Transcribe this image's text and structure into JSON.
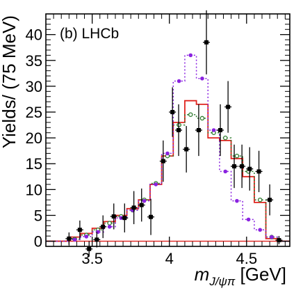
{
  "chart_data": {
    "type": "line",
    "panel_label": "(b)  LHCb",
    "ylabel": "Yields/ (75 MeV)",
    "xlabel": {
      "main": "m",
      "subscript": "J/ψπ",
      "unit": " [GeV]"
    },
    "xlim": [
      3.2,
      4.78
    ],
    "ylim": [
      -1,
      44
    ],
    "x_ticks": [
      3.5,
      4,
      4.5
    ],
    "x_tick_labels": [
      "3.5",
      "4",
      "4.5"
    ],
    "y_ticks": [
      0,
      5,
      10,
      15,
      20,
      25,
      30,
      35,
      40
    ],
    "y_tick_labels": [
      "0",
      "5",
      "10",
      "15",
      "20",
      "25",
      "30",
      "35",
      "40"
    ],
    "grid": false,
    "bin_width": 0.075,
    "data_points": {
      "color": "#000000",
      "points": [
        {
          "x": 3.35,
          "y": 0.5,
          "err": 1.2
        },
        {
          "x": 3.42,
          "y": 2.2,
          "err": 1.8
        },
        {
          "x": 3.48,
          "y": -1.5,
          "err": 1.5
        },
        {
          "x": 3.53,
          "y": 0.3,
          "err": 1.5
        },
        {
          "x": 3.57,
          "y": 2.8,
          "err": 2.2
        },
        {
          "x": 3.64,
          "y": 4.8,
          "err": 2.5
        },
        {
          "x": 3.71,
          "y": 4.5,
          "err": 2.8
        },
        {
          "x": 3.77,
          "y": 6.5,
          "err": 3.2
        },
        {
          "x": 3.82,
          "y": 7.0,
          "err": 3.2
        },
        {
          "x": 3.88,
          "y": 4.7,
          "err": 3.5
        },
        {
          "x": 3.96,
          "y": 15.5,
          "err": 4.0
        },
        {
          "x": 4.02,
          "y": 25.0,
          "err": 4.8
        },
        {
          "x": 4.06,
          "y": 21.5,
          "err": 5.0
        },
        {
          "x": 4.11,
          "y": 17.8,
          "err": 4.5
        },
        {
          "x": 4.19,
          "y": 21.5,
          "err": 5.0
        },
        {
          "x": 4.24,
          "y": 38.5,
          "err": 6.2
        },
        {
          "x": 4.33,
          "y": 21.5,
          "err": 5.0
        },
        {
          "x": 4.38,
          "y": 26.0,
          "err": 5.0
        },
        {
          "x": 4.42,
          "y": 14.5,
          "err": 4.2
        },
        {
          "x": 4.47,
          "y": 14.5,
          "err": 4.2
        },
        {
          "x": 4.52,
          "y": 14.0,
          "err": 4.2
        },
        {
          "x": 4.58,
          "y": 13.5,
          "err": 4.0
        },
        {
          "x": 4.65,
          "y": 8.0,
          "err": 3.0
        },
        {
          "x": 4.71,
          "y": 0.2,
          "err": 0.8
        }
      ]
    },
    "series": [
      {
        "color": "#e0231e",
        "style": "solid",
        "values": [
          0.8,
          1.5,
          2.5,
          3.8,
          5.0,
          6.3,
          8.0,
          11.0,
          16.5,
          23.0,
          27.2,
          26.5,
          20.0,
          19.5,
          16.0,
          12.5,
          7.5,
          0.5
        ]
      },
      {
        "color": "#2d7a2d",
        "style": "dotted",
        "values": [
          0.4,
          1.2,
          2.2,
          3.5,
          4.8,
          6.0,
          8.0,
          11.2,
          16.5,
          22.5,
          24.5,
          23.8,
          21.0,
          20.0,
          16.5,
          13.5,
          8.0,
          0.8
        ]
      },
      {
        "color": "#8a22e0",
        "style": "dotted",
        "values": [
          0.3,
          0.9,
          1.8,
          2.8,
          4.5,
          6.0,
          7.8,
          11.0,
          17.0,
          31.0,
          36.0,
          31.5,
          21.5,
          13.5,
          7.8,
          4.2,
          2.2,
          0.8
        ]
      }
    ],
    "hist_x_start": 3.35
  }
}
